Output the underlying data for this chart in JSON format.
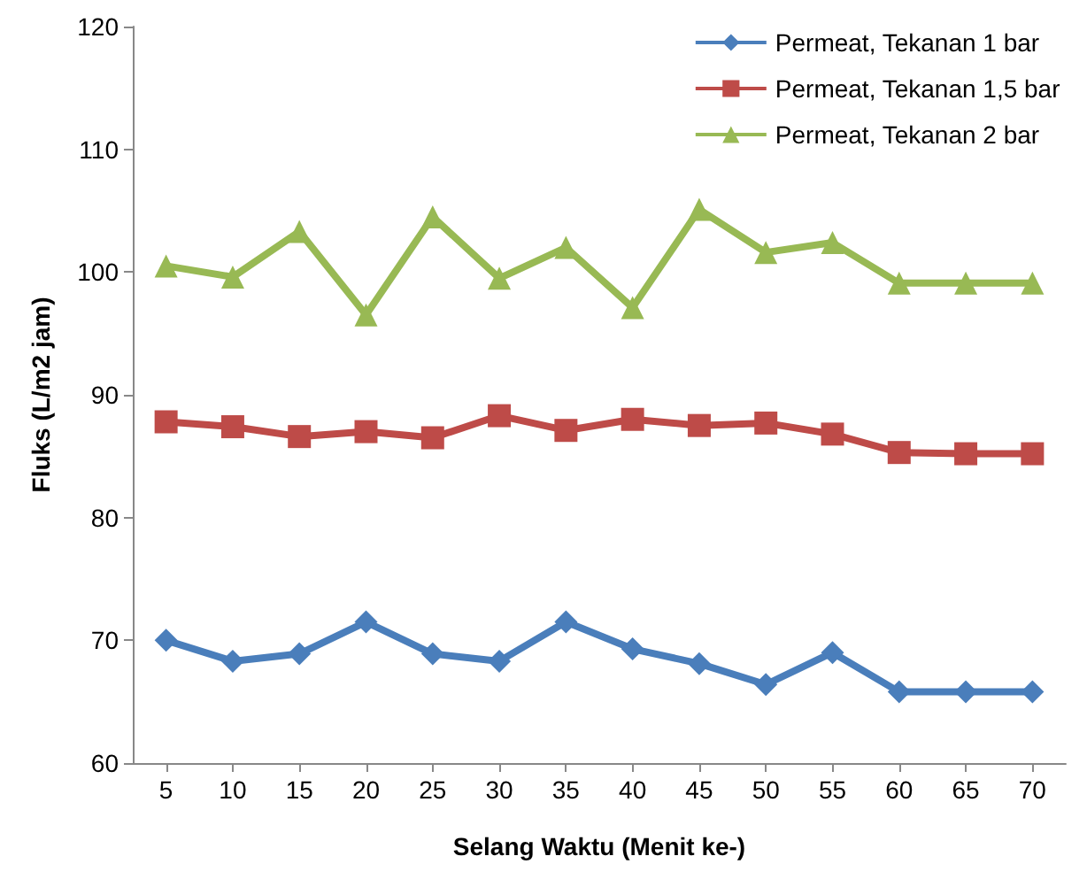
{
  "chart_data": {
    "type": "line",
    "xlabel": "Selang Waktu (Menit ke-)",
    "ylabel": "Fluks (L/m2 jam)",
    "categories": [
      "5",
      "10",
      "15",
      "20",
      "25",
      "30",
      "35",
      "40",
      "45",
      "50",
      "55",
      "60",
      "65",
      "70"
    ],
    "series": [
      {
        "name": "Permeat, Tekanan 1 bar",
        "color": "#4a7ebb",
        "marker": "diamond",
        "values": [
          70,
          68.3,
          68.9,
          71.5,
          68.9,
          68.3,
          71.5,
          69.3,
          68.1,
          66.4,
          69,
          65.8,
          65.8,
          65.8
        ]
      },
      {
        "name": "Permeat, Tekanan 1,5 bar",
        "color": "#be4b48",
        "marker": "square",
        "values": [
          87.8,
          87.4,
          86.6,
          87,
          86.5,
          88.3,
          87.1,
          88,
          87.5,
          87.7,
          86.8,
          85.3,
          85.2,
          85.2
        ]
      },
      {
        "name": "Permeat, Tekanan 2 bar",
        "color": "#98b954",
        "marker": "triangle",
        "values": [
          100.5,
          99.6,
          103.3,
          96.5,
          104.5,
          99.5,
          102,
          97.1,
          105.1,
          101.6,
          102.4,
          99.1,
          99.1,
          99.1
        ]
      }
    ],
    "ylim": [
      60,
      120
    ],
    "yticks": [
      60,
      70,
      80,
      90,
      100,
      110,
      120
    ],
    "grid": false,
    "legend": "top right",
    "line_style": "solid"
  }
}
